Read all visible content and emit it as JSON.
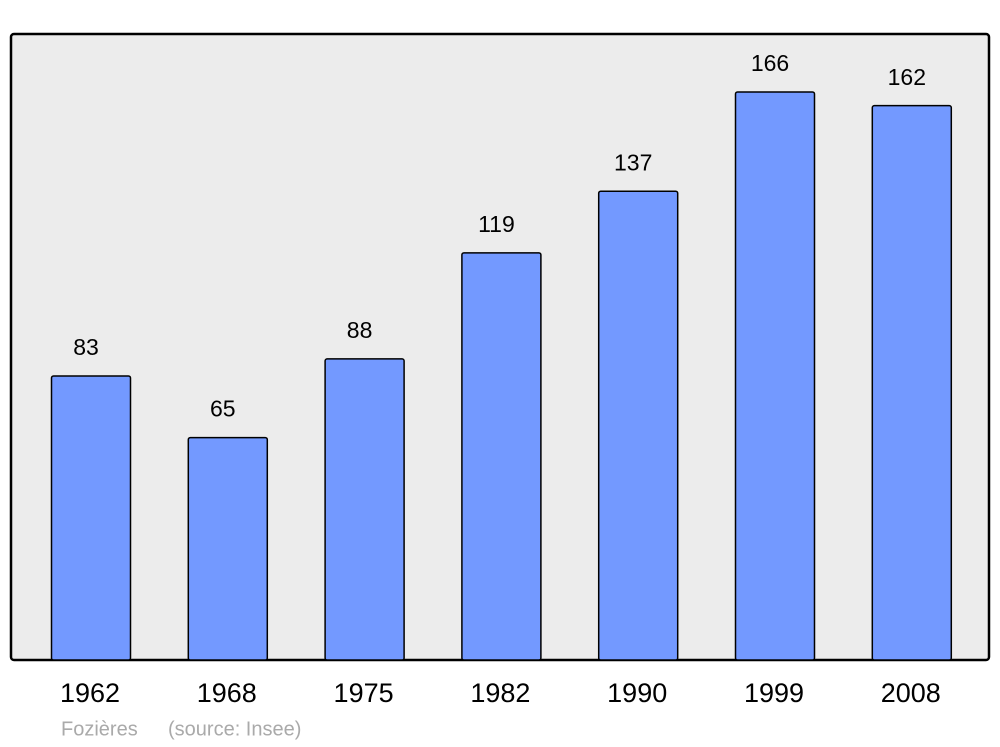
{
  "chart_data": {
    "type": "bar",
    "title": "Fozières",
    "source": "(source: Insee)",
    "categories": [
      "1962",
      "1968",
      "1975",
      "1982",
      "1990",
      "1999",
      "2008"
    ],
    "values": [
      83,
      65,
      88,
      119,
      137,
      166,
      162
    ],
    "color": "#7399ff"
  }
}
